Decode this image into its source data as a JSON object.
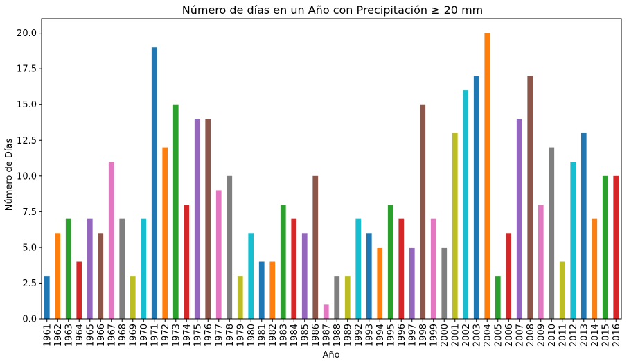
{
  "chart_data": {
    "type": "bar",
    "title": "Número de días en un Año con Precipitación ≥ 20 mm",
    "xlabel": "Año",
    "ylabel": "Número de Días",
    "ylim": [
      0,
      21
    ],
    "yticks": [
      "0.0",
      "2.5",
      "5.0",
      "7.5",
      "10.0",
      "12.5",
      "15.0",
      "17.5",
      "20.0"
    ],
    "grid": false,
    "legend": "none",
    "categories": [
      "1961",
      "1962",
      "1963",
      "1964",
      "1965",
      "1966",
      "1967",
      "1968",
      "1969",
      "1970",
      "1971",
      "1972",
      "1973",
      "1974",
      "1975",
      "1976",
      "1977",
      "1978",
      "1979",
      "1980",
      "1981",
      "1982",
      "1983",
      "1984",
      "1985",
      "1986",
      "1987",
      "1988",
      "1989",
      "1992",
      "1993",
      "1994",
      "1995",
      "1996",
      "1997",
      "1998",
      "1999",
      "2000",
      "2001",
      "2002",
      "2003",
      "2004",
      "2005",
      "2006",
      "2007",
      "2008",
      "2009",
      "2010",
      "2011",
      "2012",
      "2013",
      "2014",
      "2015",
      "2016"
    ],
    "values": [
      3,
      6,
      7,
      4,
      7,
      6,
      11,
      7,
      3,
      7,
      19,
      12,
      15,
      8,
      14,
      14,
      9,
      10,
      3,
      6,
      4,
      4,
      8,
      7,
      6,
      10,
      1,
      3,
      3,
      7,
      6,
      5,
      8,
      7,
      5,
      15,
      7,
      5,
      13,
      16,
      17,
      20,
      3,
      6,
      14,
      17,
      8,
      12,
      4,
      11,
      13,
      7,
      10,
      10
    ],
    "colors": [
      "#1f77b4",
      "#ff7f0e",
      "#2ca02c",
      "#d62728",
      "#9467bd",
      "#8c564b",
      "#e377c2",
      "#7f7f7f",
      "#bcbd22",
      "#17becf"
    ]
  }
}
